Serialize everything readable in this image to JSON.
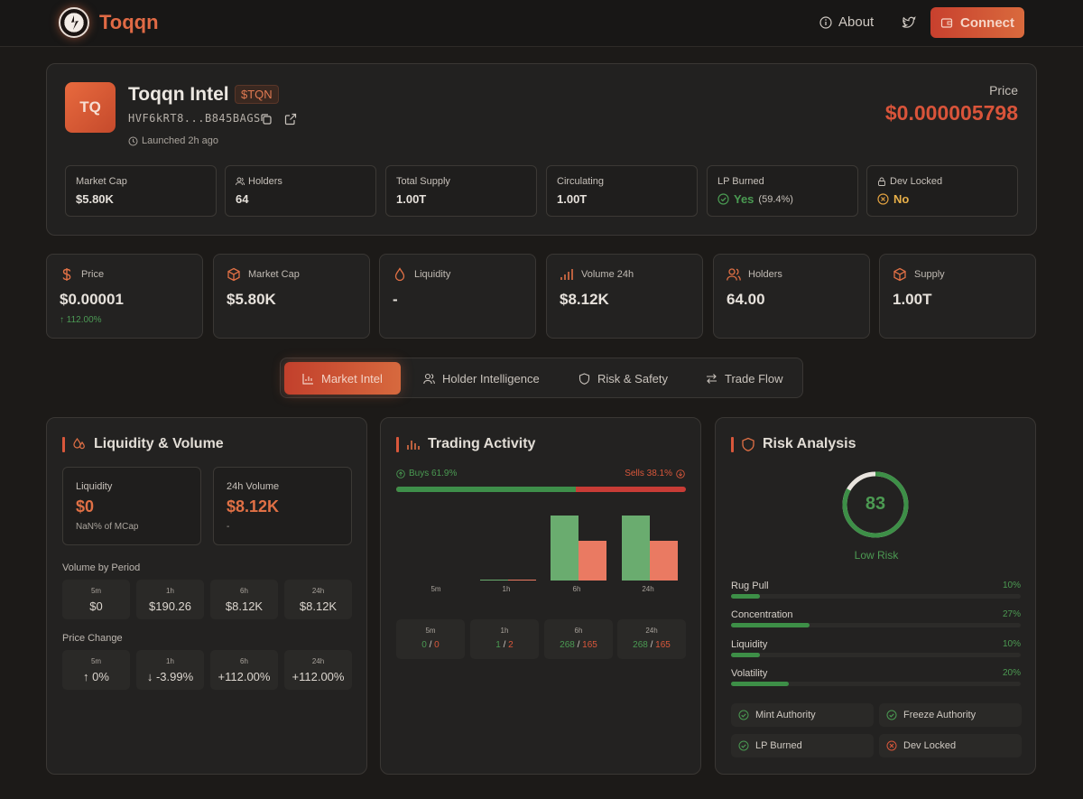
{
  "nav": {
    "brand": "Toqqn",
    "about_label": "About",
    "connect_label": "Connect"
  },
  "token": {
    "avatar_initials": "TQ",
    "name": "Toqqn Intel",
    "symbol": "$TQN",
    "address": "HVF6kRT8...B845BAGS",
    "launched": "Launched 2h ago",
    "price_label": "Price",
    "price": "$0.000005798",
    "stats": [
      {
        "label": "Market Cap",
        "value": "$5.80K"
      },
      {
        "label": "Holders",
        "value": "64"
      },
      {
        "label": "Total Supply",
        "value": "1.00T"
      },
      {
        "label": "Circulating",
        "value": "1.00T"
      },
      {
        "label": "LP Burned",
        "value": "Yes",
        "extra": "(59.4%)"
      },
      {
        "label": "Dev Locked",
        "value": "No"
      }
    ]
  },
  "metrics": [
    {
      "label": "Price",
      "value": "$0.00001",
      "change": "112.00%"
    },
    {
      "label": "Market Cap",
      "value": "$5.80K"
    },
    {
      "label": "Liquidity",
      "value": "-"
    },
    {
      "label": "Volume 24h",
      "value": "$8.12K"
    },
    {
      "label": "Holders",
      "value": "64.00"
    },
    {
      "label": "Supply",
      "value": "1.00T"
    }
  ],
  "tabs": [
    "Market Intel",
    "Holder Intelligence",
    "Risk & Safety",
    "Trade Flow"
  ],
  "liquidity_panel": {
    "title": "Liquidity & Volume",
    "liquidity_label": "Liquidity",
    "liquidity_value": "$0",
    "liquidity_sub": "NaN% of MCap",
    "volume_label": "24h Volume",
    "volume_value": "$8.12K",
    "volume_sub": "-",
    "volume_by_period_label": "Volume by Period",
    "volume_periods": [
      {
        "period": "5m",
        "value": "$0"
      },
      {
        "period": "1h",
        "value": "$190.26"
      },
      {
        "period": "6h",
        "value": "$8.12K"
      },
      {
        "period": "24h",
        "value": "$8.12K"
      }
    ],
    "price_change_label": "Price Change",
    "price_changes": [
      {
        "period": "5m",
        "value": "0%"
      },
      {
        "period": "1h",
        "value": "-3.99%"
      },
      {
        "period": "6h",
        "value": "+112.00%"
      },
      {
        "period": "24h",
        "value": "+112.00%"
      }
    ]
  },
  "trading_panel": {
    "title": "Trading Activity",
    "buys_label": "Buys 61.9%",
    "sells_label": "Sells 38.1%",
    "buy_ratio": 0.619,
    "chart_data": {
      "type": "bar",
      "categories": [
        "5m",
        "1h",
        "6h",
        "24h"
      ],
      "series": [
        {
          "name": "Buys",
          "values": [
            0,
            1,
            268,
            268
          ],
          "color": "#6aac6f"
        },
        {
          "name": "Sells",
          "values": [
            0,
            2,
            165,
            165
          ],
          "color": "#ea7a62"
        }
      ],
      "ylim": [
        0,
        268
      ]
    },
    "counts": [
      {
        "period": "5m",
        "buys": "0",
        "sells": "0"
      },
      {
        "period": "1h",
        "buys": "1",
        "sells": "2"
      },
      {
        "period": "6h",
        "buys": "268",
        "sells": "165"
      },
      {
        "period": "24h",
        "buys": "268",
        "sells": "165"
      }
    ]
  },
  "risk_panel": {
    "title": "Risk Analysis",
    "score": "83",
    "score_value": 83,
    "score_label": "Low Risk",
    "factors": [
      {
        "name": "Rug Pull",
        "percent": "10%",
        "value": 10
      },
      {
        "name": "Concentration",
        "percent": "27%",
        "value": 27
      },
      {
        "name": "Liquidity",
        "percent": "10%",
        "value": 10
      },
      {
        "name": "Volatility",
        "percent": "20%",
        "value": 20
      }
    ],
    "checks": [
      {
        "name": "Mint Authority",
        "ok": true
      },
      {
        "name": "Freeze Authority",
        "ok": true
      },
      {
        "name": "LP Burned",
        "ok": true
      },
      {
        "name": "Dev Locked",
        "ok": false
      }
    ]
  },
  "colors": {
    "accent": "#d9573b",
    "green": "#4a9a52",
    "red": "#d9573b",
    "background": "#1c1a18"
  }
}
